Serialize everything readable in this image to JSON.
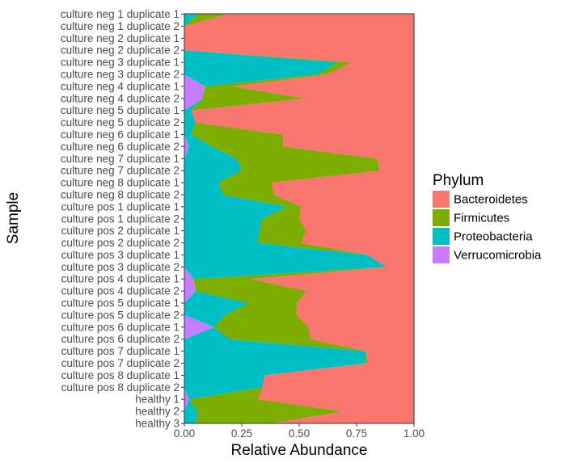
{
  "chart_data": {
    "type": "area",
    "orientation": "horizontal-stacked",
    "xlabel": "Relative Abundance",
    "ylabel": "Sample",
    "xlim": [
      0,
      1
    ],
    "x_ticks": [
      "0.00",
      "0.25",
      "0.50",
      "0.75",
      "1.00"
    ],
    "grid": false,
    "legend": {
      "title": "Phylum",
      "placement": "right"
    },
    "stack_order": [
      "Verrucomicrobia",
      "Proteobacteria",
      "Firmicutes",
      "Bacteroidetes"
    ],
    "colors": {
      "Bacteroidetes": "#F8766D",
      "Firmicutes": "#7CAE00",
      "Proteobacteria": "#00BFC4",
      "Verrucomicrobia": "#C77CFF"
    },
    "categories": [
      "culture neg 1 duplicate 1",
      "culture neg 1 duplicate 2",
      "culture neg 2 duplicate 1",
      "culture neg 2 duplicate 2",
      "culture neg 3 duplicate 1",
      "culture neg 3 duplicate 2",
      "culture neg 4 duplicate 1",
      "culture neg 4 duplicate 2",
      "culture neg 5 duplicate 1",
      "culture neg 5 duplicate 2",
      "culture neg 6 duplicate 1",
      "culture neg 6 duplicate 2",
      "culture neg 7 duplicate 1",
      "culture neg 7 duplicate 2",
      "culture neg 8 duplicate 1",
      "culture neg 8 duplicate 2",
      "culture pos 1 duplicate 1",
      "culture pos 1 duplicate 2",
      "culture pos 2 duplicate 1",
      "culture pos 2 duplicate 2",
      "culture pos 3 duplicate 1",
      "culture pos 3 duplicate 2",
      "culture pos 4 duplicate 1",
      "culture pos 4 duplicate 2",
      "culture pos 5 duplicate 1",
      "culture pos 5 duplicate 2",
      "culture pos 6 duplicate 1",
      "culture pos 6 duplicate 2",
      "culture pos 7 duplicate 1",
      "culture pos 7 duplicate 2",
      "culture pos 8 duplicate 1",
      "culture pos 8 duplicate 2",
      "healthy 1",
      "healthy 2",
      "healthy 3"
    ],
    "series": [
      {
        "name": "Verrucomicrobia",
        "values": [
          0.0,
          0.0,
          0.0,
          0.0,
          0.0,
          0.0,
          0.09,
          0.08,
          0.0,
          0.0,
          0.0,
          0.02,
          0.0,
          0.0,
          0.0,
          0.0,
          0.0,
          0.0,
          0.0,
          0.0,
          0.0,
          0.0,
          0.04,
          0.05,
          0.0,
          0.0,
          0.13,
          0.0,
          0.0,
          0.0,
          0.0,
          0.0,
          0.02,
          0.0,
          0.0
        ]
      },
      {
        "name": "Proteobacteria",
        "values": [
          0.06,
          0.0,
          0.0,
          0.0,
          0.67,
          0.58,
          0.0,
          0.0,
          0.03,
          0.05,
          0.03,
          0.1,
          0.23,
          0.25,
          0.15,
          0.17,
          0.45,
          0.34,
          0.33,
          0.32,
          0.8,
          0.88,
          0.0,
          0.0,
          0.28,
          0.18,
          0.0,
          0.2,
          0.79,
          0.79,
          0.35,
          0.34,
          0.0,
          0.06,
          0.05
        ]
      },
      {
        "name": "Firmicutes",
        "values": [
          0.13,
          0.0,
          0.0,
          0.0,
          0.06,
          0.04,
          0.12,
          0.45,
          0.0,
          0.0,
          0.4,
          0.31,
          0.61,
          0.6,
          0.23,
          0.22,
          0.06,
          0.16,
          0.2,
          0.19,
          0.0,
          0.0,
          0.25,
          0.48,
          0.21,
          0.31,
          0.41,
          0.35,
          0.0,
          0.01,
          0.0,
          0.0,
          0.3,
          0.63,
          0.33
        ]
      },
      {
        "name": "Bacteroidetes",
        "values": [
          0.81,
          1.0,
          1.0,
          1.0,
          0.27,
          0.38,
          0.79,
          0.47,
          0.97,
          0.95,
          0.57,
          0.57,
          0.16,
          0.15,
          0.62,
          0.61,
          0.49,
          0.5,
          0.47,
          0.49,
          0.2,
          0.12,
          0.71,
          0.47,
          0.51,
          0.51,
          0.46,
          0.45,
          0.21,
          0.2,
          0.65,
          0.66,
          0.68,
          0.31,
          0.62
        ]
      }
    ]
  }
}
